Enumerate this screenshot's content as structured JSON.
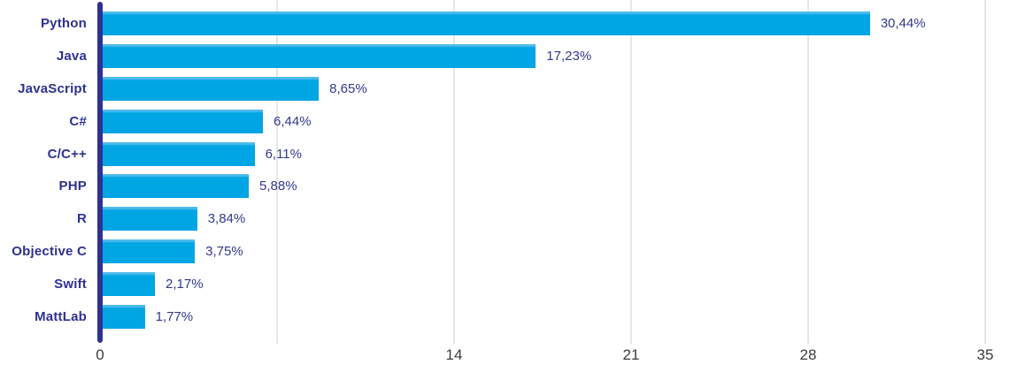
{
  "chart_data": {
    "type": "bar",
    "orientation": "horizontal",
    "title": "",
    "xlabel": "",
    "ylabel": "",
    "categories": [
      "Python",
      "Java",
      "JavaScript",
      "C#",
      "C/C++",
      "PHP",
      "R",
      "Objective C",
      "Swift",
      "MattLab"
    ],
    "values": [
      30.44,
      17.23,
      8.65,
      6.44,
      6.11,
      5.88,
      3.84,
      3.75,
      2.17,
      1.77
    ],
    "value_labels": [
      "30,44%",
      "17,23%",
      "8,65%",
      "6,44%",
      "6,11%",
      "5,88%",
      "3,84%",
      "3,75%",
      "2,17%",
      "1,77%"
    ],
    "xlim": [
      0,
      35
    ],
    "x_ticks": [
      {
        "value": 0,
        "label": "0"
      },
      {
        "value": 14,
        "label": "14"
      },
      {
        "value": 21,
        "label": "21"
      },
      {
        "value": 28,
        "label": "28"
      },
      {
        "value": 35,
        "label": "35"
      }
    ],
    "gridline_values": [
      7,
      14,
      21,
      28,
      35
    ],
    "grid": true,
    "legend": false,
    "colors": {
      "bar": "#00A5E4",
      "bar_highlight": "#4FBCEA",
      "axis": "#2E3192",
      "category_label": "#2E3192",
      "value_label": "#31398E",
      "gridline": "#E7E7E7",
      "tick_label": "#3C3C3C",
      "background": "#FFFFFF"
    }
  }
}
